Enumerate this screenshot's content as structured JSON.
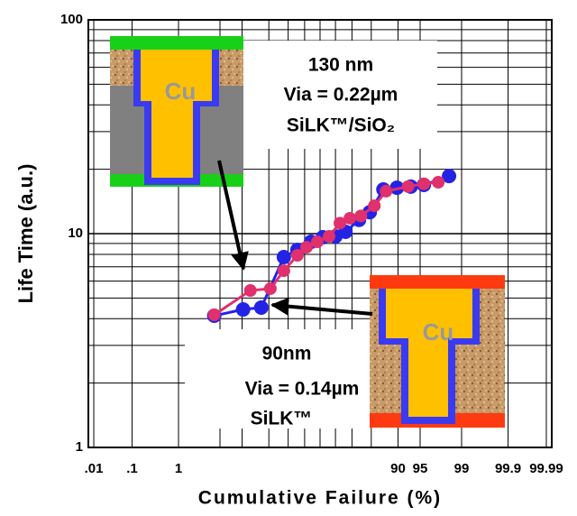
{
  "chart_data": {
    "type": "probability-scatter",
    "y_label": "Life Time (a.u.)",
    "x_label": "Cumulative Failure (%)",
    "xscale": "probability",
    "yscale": "log",
    "grid": true,
    "xlim": [
      0.007,
      99.993
    ],
    "ylim": [
      1,
      100
    ],
    "xticks": [
      {
        "value": 0.01,
        "label": ".01"
      },
      {
        "value": 0.1,
        "label": ".1"
      },
      1,
      90,
      95,
      99,
      99.9,
      99.99
    ],
    "xgrid": [
      5,
      10,
      20,
      30,
      40,
      50,
      60,
      70,
      80
    ],
    "yticks": [
      1,
      10,
      100
    ],
    "ygrid": [
      2,
      3,
      4,
      5,
      6,
      7,
      8,
      9,
      20,
      30,
      40,
      50,
      60,
      70,
      80,
      90
    ],
    "series": [
      {
        "name": "90nm",
        "color": "#2323e6",
        "x": [
          4.1,
          10.3,
          16.7,
          27.6,
          35.5,
          44.1,
          51.8,
          60.0,
          66.2,
          73.9,
          79.3,
          85.1,
          89.7,
          93.2,
          95.6,
          98.3
        ],
        "values": [
          4.13,
          4.42,
          4.51,
          7.77,
          8.4,
          9.16,
          9.62,
          9.71,
          10.2,
          11.6,
          12.6,
          16.1,
          16.4,
          16.6,
          16.9,
          18.6
        ]
      },
      {
        "name": "130 nm",
        "color": "#e0306e",
        "x": [
          4.1,
          12.6,
          20.7,
          27.6,
          35.5,
          41.2,
          48.2,
          55.9,
          62.8,
          68.8,
          74.9,
          81.4,
          86.1,
          92.6,
          95.6,
          97.4
        ],
        "values": [
          4.17,
          5.42,
          5.53,
          6.71,
          7.92,
          8.64,
          9.16,
          9.71,
          11.2,
          11.8,
          12.1,
          13.5,
          15.8,
          16.6,
          17.1,
          17.4
        ]
      }
    ],
    "annotations_130": [
      "130 nm",
      "Via = 0.22µm",
      "SiLK™/SiO₂"
    ],
    "annotations_90": [
      "90nm",
      "Via = 0.14µm",
      "SiLK™"
    ],
    "image_label": "Cu"
  }
}
